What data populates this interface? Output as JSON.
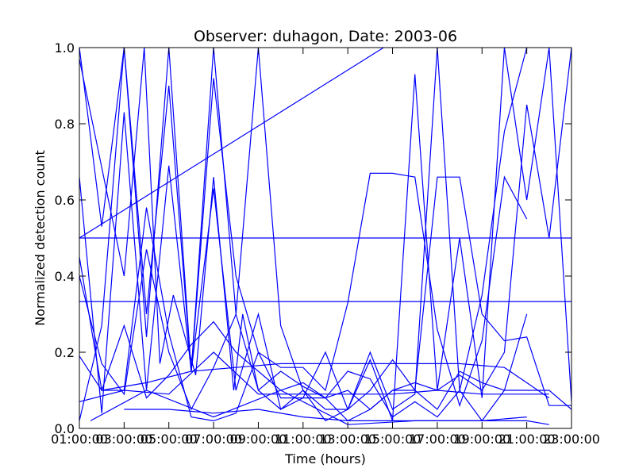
{
  "chart_data": {
    "type": "line",
    "title": "Observer: duhagon, Date: 2003-06",
    "xlabel": "Time (hours)",
    "ylabel": "Normalized detection count",
    "xlim": [
      1,
      23
    ],
    "ylim": [
      0,
      1
    ],
    "x_ticks": [
      {
        "value": 1,
        "label": "01:00:00"
      },
      {
        "value": 3,
        "label": "03:00:00"
      },
      {
        "value": 5,
        "label": "05:00:00"
      },
      {
        "value": 7,
        "label": "07:00:00"
      },
      {
        "value": 9,
        "label": "09:00:00"
      },
      {
        "value": 11,
        "label": "11:00:00"
      },
      {
        "value": 13,
        "label": "13:00:00"
      },
      {
        "value": 15,
        "label": "15:00:00"
      },
      {
        "value": 17,
        "label": "17:00:00"
      },
      {
        "value": 19,
        "label": "19:00:00"
      },
      {
        "value": 21,
        "label": "21:00:00"
      },
      {
        "value": 23,
        "label": "23:00:00"
      }
    ],
    "y_ticks": [
      {
        "value": 0.0,
        "label": "0.0"
      },
      {
        "value": 0.2,
        "label": "0.2"
      },
      {
        "value": 0.4,
        "label": "0.4"
      },
      {
        "value": 0.6,
        "label": "0.6"
      },
      {
        "value": 0.8,
        "label": "0.8"
      },
      {
        "value": 1.0,
        "label": "1.0"
      }
    ],
    "grid": false,
    "line_color": "#0000ff",
    "series": [
      {
        "x": [
          1,
          23
        ],
        "y": [
          0.5,
          0.5
        ]
      },
      {
        "x": [
          1,
          23
        ],
        "y": [
          0.333,
          0.333
        ]
      },
      {
        "x": [
          1,
          14.6
        ],
        "y": [
          0.5,
          1.0
        ]
      },
      {
        "x": [
          1,
          2,
          3,
          4,
          5,
          6,
          7,
          8,
          9,
          10,
          11,
          12,
          13,
          14,
          15,
          16,
          17,
          18,
          19,
          20,
          21
        ],
        "y": [
          1.0,
          0.53,
          1.0,
          0.3,
          0.9,
          0.15,
          1.0,
          0.3,
          1.0,
          0.27,
          0.1,
          0.05,
          0.05,
          0.2,
          0.05,
          0.09,
          1.0,
          0.1,
          0.35,
          0.78,
          1.0
        ]
      },
      {
        "x": [
          1,
          2,
          3,
          4,
          5,
          6,
          7,
          8,
          9,
          10,
          11,
          12,
          13,
          14,
          15,
          16,
          17,
          18,
          19,
          20,
          21,
          22,
          23
        ],
        "y": [
          0.66,
          0.04,
          0.83,
          0.1,
          0.69,
          0.15,
          0.92,
          0.4,
          0.2,
          0.08,
          0.08,
          0.08,
          0.02,
          0.05,
          0.1,
          0.1,
          0.05,
          0.15,
          0.12,
          0.1,
          0.1,
          0.1,
          0.05
        ]
      },
      {
        "x": [
          1,
          2,
          3,
          4,
          5,
          6,
          7,
          8,
          9,
          10,
          11,
          12,
          13,
          14,
          15,
          16,
          17,
          18,
          19,
          20,
          21,
          22,
          23
        ],
        "y": [
          0.02,
          0.27,
          1.0,
          0.24,
          1.0,
          0.15,
          0.63,
          0.1,
          0.3,
          0.05,
          0.1,
          0.02,
          0.05,
          0.18,
          0.02,
          0.93,
          0.1,
          0.5,
          0.08,
          1.0,
          0.6,
          1.0,
          0.07
        ]
      },
      {
        "x": [
          1,
          3,
          3.9,
          4.6,
          5.2,
          6.2,
          7,
          7.9,
          8.3,
          9,
          10,
          11,
          12,
          13,
          14,
          15,
          16,
          17,
          18,
          19,
          20,
          21,
          22,
          23
        ],
        "y": [
          0.97,
          0.4,
          1.0,
          0.17,
          0.35,
          0.14,
          0.66,
          0.1,
          0.3,
          0.1,
          0.05,
          0.08,
          0.2,
          0.05,
          0.1,
          0.18,
          0.1,
          0.66,
          0.66,
          0.3,
          0.23,
          0.24,
          0.06,
          0.06
        ]
      },
      {
        "x": [
          1,
          2,
          3,
          4,
          5,
          6,
          7,
          8,
          9,
          10,
          11,
          12,
          13,
          14,
          15,
          16,
          17,
          18,
          19,
          20,
          21
        ],
        "y": [
          0.45,
          0.1,
          0.1,
          0.58,
          0.25,
          0.03,
          0.02,
          0.04,
          0.2,
          0.16,
          0.16,
          0.1,
          0.33,
          0.67,
          0.67,
          0.66,
          0.26,
          0.06,
          0.23,
          0.66,
          0.55
        ]
      },
      {
        "x": [
          1,
          2,
          3,
          4,
          5,
          6,
          7,
          8,
          9,
          10,
          11,
          12,
          13,
          14,
          15,
          16,
          17,
          18,
          19,
          20,
          21,
          22,
          23
        ],
        "y": [
          0.4,
          0.17,
          0.09,
          0.47,
          0.2,
          0.05,
          0.16,
          0.3,
          0.1,
          0.15,
          0.11,
          0.08,
          0.1,
          0.05,
          0.1,
          0.12,
          0.1,
          0.14,
          0.1,
          0.2,
          0.85,
          0.5,
          1.0
        ]
      },
      {
        "x": [
          1,
          2,
          3,
          4,
          5,
          6,
          7,
          8,
          9,
          10,
          11,
          12,
          13,
          14,
          15,
          16,
          17,
          18,
          19,
          20,
          21
        ],
        "y": [
          0.19,
          0.1,
          0.27,
          0.08,
          0.14,
          0.22,
          0.28,
          0.2,
          0.15,
          0.1,
          0.12,
          0.08,
          0.15,
          0.13,
          0.03,
          0.07,
          0.03,
          0.1,
          0.02,
          0.1,
          0.3
        ]
      },
      {
        "x": [
          1,
          3,
          5,
          7,
          9,
          11,
          13,
          15,
          17,
          19,
          21,
          22
        ],
        "y": [
          0.07,
          0.1,
          0.09,
          0.2,
          0.09,
          0.09,
          0.09,
          0.09,
          0.1,
          0.09,
          0.09,
          0.09
        ]
      },
      {
        "x": [
          3,
          5,
          7,
          9,
          11,
          13,
          15,
          17,
          19,
          21,
          22
        ],
        "y": [
          0.05,
          0.05,
          0.04,
          0.05,
          0.03,
          0.02,
          0.02,
          0.02,
          0.02,
          0.02,
          0.01
        ]
      },
      {
        "x": [
          2,
          4,
          6,
          8,
          10,
          12,
          14,
          16,
          18,
          20,
          22
        ],
        "y": [
          0.1,
          0.12,
          0.15,
          0.16,
          0.17,
          0.17,
          0.17,
          0.17,
          0.17,
          0.16,
          0.08
        ]
      },
      {
        "x": [
          1.5,
          4,
          7,
          10,
          13,
          16,
          19,
          21
        ],
        "y": [
          0.02,
          0.1,
          0.03,
          0.1,
          0.01,
          0.02,
          0.02,
          0.03
        ]
      }
    ]
  }
}
